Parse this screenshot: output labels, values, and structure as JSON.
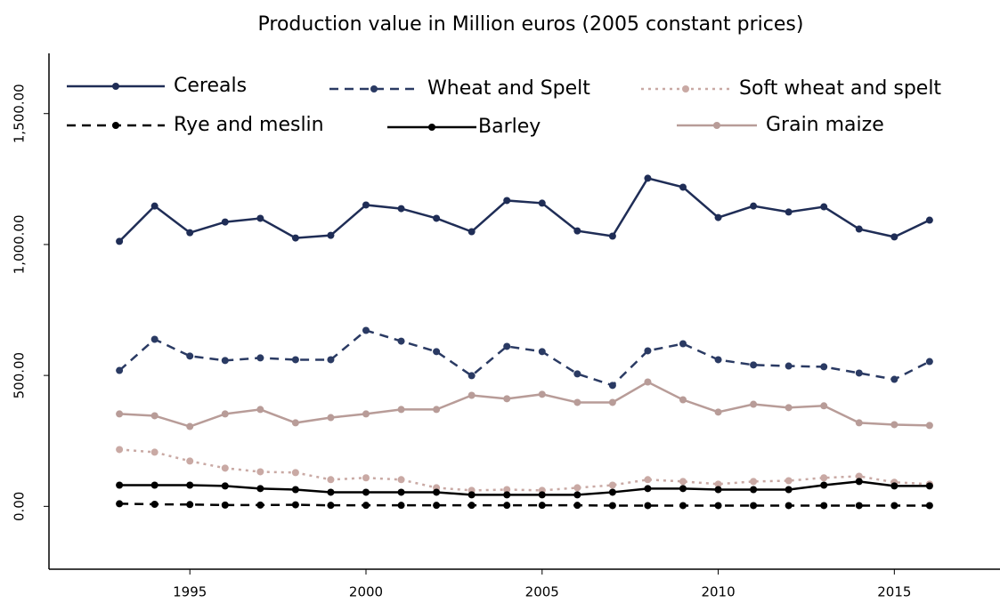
{
  "chart_data": {
    "type": "line",
    "title": "Production value in Million euros (2005 constant prices)",
    "x": [
      1993,
      1994,
      1995,
      1996,
      1997,
      1998,
      1999,
      2000,
      2001,
      2002,
      2003,
      2004,
      2005,
      2006,
      2007,
      2008,
      2009,
      2010,
      2011,
      2012,
      2013,
      2014,
      2015,
      2016
    ],
    "xlim": [
      1991,
      2018
    ],
    "xticks": [
      1995,
      2000,
      2005,
      2010,
      2015
    ],
    "ylim": [
      -240,
      1730
    ],
    "yticks": [
      {
        "value": 0,
        "label": "0.00"
      },
      {
        "value": 500,
        "label": "500.00"
      },
      {
        "value": 1000,
        "label": "1,000.00"
      },
      {
        "value": 1500,
        "label": "1,500.00"
      }
    ],
    "series": [
      {
        "name": "Cereals",
        "color": "#1f2d56",
        "style": "solid",
        "values": [
          1012,
          1147,
          1045,
          1086,
          1100,
          1025,
          1035,
          1151,
          1137,
          1100,
          1049,
          1168,
          1158,
          1052,
          1032,
          1253,
          1219,
          1103,
          1147,
          1124,
          1144,
          1059,
          1029,
          1093
        ]
      },
      {
        "name": "Wheat and Spelt",
        "color": "#2a3a63",
        "style": "dashed",
        "values": [
          519,
          638,
          574,
          557,
          567,
          560,
          560,
          672,
          631,
          591,
          499,
          611,
          591,
          506,
          462,
          594,
          621,
          560,
          540,
          536,
          533,
          509,
          485,
          553
        ]
      },
      {
        "name": "Soft wheat and spelt",
        "color": "#c9a9a4",
        "style": "dotted",
        "values": [
          217,
          207,
          173,
          146,
          132,
          129,
          102,
          109,
          102,
          71,
          61,
          64,
          61,
          71,
          81,
          102,
          95,
          85,
          95,
          98,
          109,
          115,
          92,
          85
        ]
      },
      {
        "name": "Rye and meslin",
        "color": "#000000",
        "style": "dashed",
        "values": [
          10,
          8,
          7,
          5,
          5,
          6,
          4,
          4,
          4,
          4,
          4,
          4,
          4,
          4,
          3,
          3,
          3,
          3,
          3,
          3,
          3,
          3,
          3,
          3
        ]
      },
      {
        "name": "Barley",
        "color": "#000000",
        "style": "solid",
        "values": [
          81,
          81,
          81,
          78,
          68,
          64,
          54,
          54,
          54,
          54,
          44,
          44,
          44,
          44,
          54,
          68,
          68,
          64,
          64,
          64,
          81,
          95,
          78,
          78
        ]
      },
      {
        "name": "Grain maize",
        "color": "#b89c98",
        "style": "solid",
        "values": [
          353,
          346,
          305,
          353,
          370,
          319,
          339,
          353,
          370,
          370,
          424,
          411,
          428,
          397,
          397,
          475,
          407,
          360,
          390,
          377,
          384,
          319,
          312,
          309
        ]
      }
    ]
  }
}
